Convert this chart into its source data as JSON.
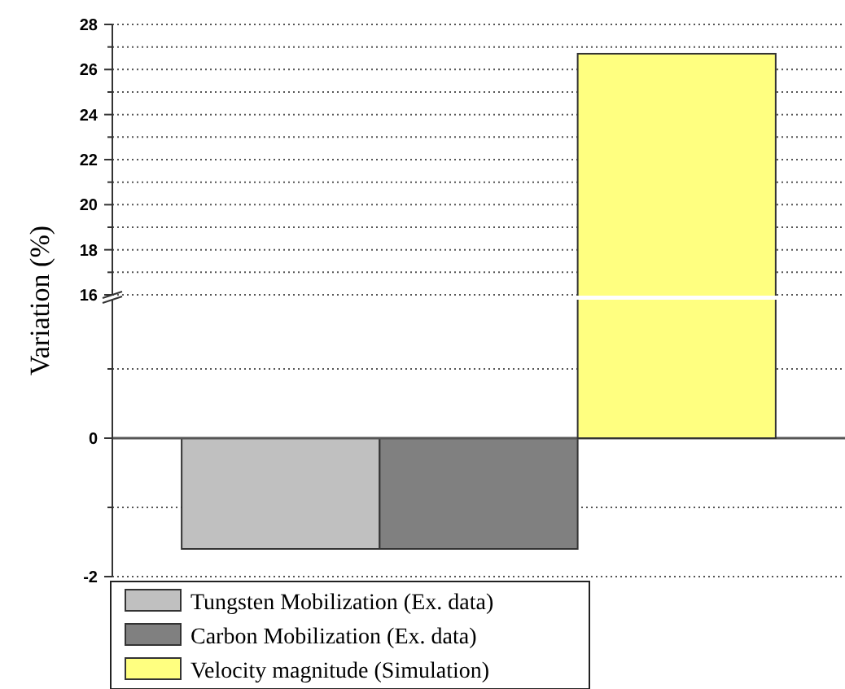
{
  "chart_data": [
    {
      "type": "bar",
      "ylabel": "Variation (%)",
      "categories": [
        null,
        null,
        null
      ],
      "series": [
        {
          "color": "#ffff80",
          "values": [
            null,
            null,
            26.7
          ]
        }
      ],
      "ylim": [
        16,
        28
      ],
      "yticks": [
        16,
        {
          "value": 17,
          "label": null
        },
        18,
        {
          "value": 19,
          "label": null
        },
        20,
        {
          "value": 21,
          "label": null
        },
        22,
        {
          "value": 23,
          "label": null
        },
        24,
        {
          "value": 25,
          "label": null
        },
        26,
        {
          "value": 27,
          "label": null
        },
        28
      ],
      "grid": true
    },
    {
      "type": "bar",
      "categories": [
        null,
        null,
        null
      ],
      "series": [
        {
          "name": "Tungsten Mobilization (Ex. data)",
          "color": "#c0c0c0",
          "values": [
            -1.6,
            null,
            null
          ]
        },
        {
          "name": "Carbon Mobilization (Ex. data)",
          "color": "#808080",
          "values": [
            null,
            -1.6,
            null
          ]
        },
        {
          "name": "Velocity magnitude (Simulation)",
          "color": "#ffff80",
          "values": [
            null,
            null,
            null
          ]
        }
      ],
      "ylim": [
        -2,
        2
      ],
      "yticks": [
        -2,
        {
          "value": -1,
          "label": null
        },
        0,
        {
          "value": 1,
          "label": null
        }
      ],
      "grid": true,
      "legend": "bottom"
    }
  ]
}
